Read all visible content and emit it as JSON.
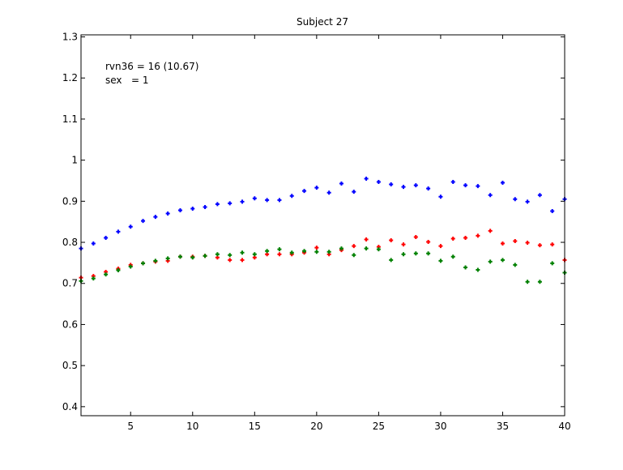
{
  "chart_data": {
    "type": "scatter",
    "title": "Subject 27",
    "xlabel": "",
    "ylabel": "",
    "xlim": [
      1,
      40
    ],
    "ylim": [
      0.378,
      1.305
    ],
    "xticks": [
      5,
      10,
      15,
      20,
      25,
      30,
      35,
      40
    ],
    "yticks": [
      0.4,
      0.5,
      0.6,
      0.7,
      0.8,
      0.9,
      1,
      1.1,
      1.2,
      1.3
    ],
    "ytick_labels": [
      "0.4",
      "0.5",
      "0.6",
      "0.7",
      "0.8",
      "0.9",
      "1",
      "1.1",
      "1.2",
      "1.3"
    ],
    "grid": false,
    "marker": "plus",
    "annotations": [
      "rvn36 = 16 (10.67)",
      "sex   = 1"
    ],
    "x": [
      1,
      2,
      3,
      4,
      5,
      6,
      7,
      8,
      9,
      10,
      11,
      12,
      13,
      14,
      15,
      16,
      17,
      18,
      19,
      20,
      21,
      22,
      23,
      24,
      25,
      26,
      27,
      28,
      29,
      30,
      31,
      32,
      33,
      34,
      35,
      36,
      37,
      38,
      39,
      40
    ],
    "series": [
      {
        "color": "#0000ff",
        "values": [
          0.785,
          0.797,
          0.811,
          0.826,
          0.838,
          0.852,
          0.862,
          0.87,
          0.878,
          0.882,
          0.886,
          0.893,
          0.895,
          0.899,
          0.907,
          0.903,
          0.903,
          0.913,
          0.925,
          0.933,
          0.921,
          0.943,
          0.923,
          0.955,
          0.947,
          0.941,
          0.935,
          0.939,
          0.931,
          0.911,
          0.947,
          0.939,
          0.937,
          0.915,
          0.945,
          0.905,
          0.899,
          0.915,
          0.876,
          0.905
        ]
      },
      {
        "color": "#ff0000",
        "values": [
          0.714,
          0.718,
          0.728,
          0.736,
          0.745,
          0.749,
          0.753,
          0.755,
          0.765,
          0.765,
          0.767,
          0.763,
          0.757,
          0.757,
          0.763,
          0.771,
          0.771,
          0.771,
          0.775,
          0.787,
          0.771,
          0.781,
          0.791,
          0.807,
          0.789,
          0.805,
          0.795,
          0.813,
          0.801,
          0.791,
          0.809,
          0.811,
          0.816,
          0.828,
          0.797,
          0.803,
          0.799,
          0.793,
          0.795,
          0.757
        ]
      },
      {
        "color": "#008000",
        "values": [
          0.706,
          0.712,
          0.722,
          0.732,
          0.741,
          0.749,
          0.755,
          0.761,
          0.765,
          0.763,
          0.767,
          0.771,
          0.769,
          0.775,
          0.771,
          0.779,
          0.783,
          0.775,
          0.779,
          0.777,
          0.777,
          0.785,
          0.769,
          0.785,
          0.783,
          0.757,
          0.771,
          0.773,
          0.773,
          0.755,
          0.765,
          0.739,
          0.733,
          0.753,
          0.757,
          0.745,
          0.704,
          0.704,
          0.749,
          0.726
        ]
      }
    ]
  }
}
